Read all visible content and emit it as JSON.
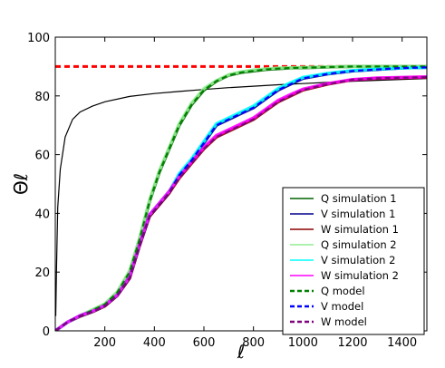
{
  "chart_data": {
    "type": "line",
    "title": "",
    "xlabel": "ℓ",
    "ylabel": "Θℓ",
    "xlim": [
      0,
      1500
    ],
    "ylim": [
      0,
      100
    ],
    "x_ticks": [
      200,
      400,
      600,
      800,
      1000,
      1200,
      1400
    ],
    "y_ticks": [
      0,
      20,
      40,
      60,
      80,
      100
    ],
    "grid": false,
    "legend_position": "bottom-right",
    "reference_lines": [
      {
        "kind": "horizontal",
        "y": 90,
        "color": "#ff0000",
        "style": "dashed"
      }
    ],
    "unlabeled_curve": {
      "color": "#000000",
      "x": [
        2,
        5,
        10,
        20,
        40,
        70,
        100,
        150,
        200,
        300,
        400,
        500,
        600,
        700,
        800,
        900,
        1000,
        1100,
        1200,
        1300,
        1400,
        1500
      ],
      "y": [
        5,
        22,
        42,
        55,
        66,
        72,
        74.5,
        76.5,
        78,
        79.8,
        80.8,
        81.5,
        82.2,
        82.8,
        83.3,
        83.8,
        84.2,
        84.6,
        85,
        85.3,
        85.6,
        85.9
      ]
    },
    "series": [
      {
        "name": "Q simulation 1",
        "color": "#006400",
        "style": "solid",
        "x": [
          0,
          50,
          100,
          150,
          200,
          250,
          300,
          340,
          380,
          420,
          460,
          500,
          550,
          600,
          650,
          700,
          750,
          800,
          850,
          900,
          950,
          1000,
          1100,
          1200,
          1300,
          1400,
          1500
        ],
        "y": [
          0,
          3,
          5,
          7,
          9,
          13,
          20,
          31,
          44,
          54,
          62,
          70,
          77,
          82,
          85,
          87,
          88,
          88.5,
          89,
          89.3,
          89.5,
          89.6,
          89.8,
          90,
          90,
          90,
          90
        ]
      },
      {
        "name": "V simulation 1",
        "color": "#00008b",
        "style": "solid",
        "x": [
          0,
          50,
          100,
          150,
          200,
          250,
          300,
          340,
          380,
          420,
          460,
          500,
          550,
          600,
          650,
          700,
          750,
          800,
          850,
          900,
          950,
          1000,
          1100,
          1200,
          1300,
          1400,
          1500
        ],
        "y": [
          0,
          3,
          5,
          6.5,
          8.5,
          12,
          18,
          29,
          39,
          43,
          47,
          53,
          58,
          64,
          70,
          72,
          74,
          76,
          79,
          82,
          84,
          86,
          87.5,
          88.5,
          89,
          89.5,
          89.7
        ]
      },
      {
        "name": "W simulation 1",
        "color": "#8b0000",
        "style": "solid",
        "x": [
          0,
          50,
          100,
          150,
          200,
          250,
          300,
          340,
          380,
          420,
          460,
          500,
          550,
          600,
          650,
          700,
          750,
          800,
          850,
          900,
          950,
          1000,
          1100,
          1200,
          1300,
          1400,
          1500
        ],
        "y": [
          0,
          3,
          5,
          6.5,
          8.5,
          12,
          18,
          29,
          39,
          43,
          47,
          52,
          57,
          62,
          66,
          68,
          70,
          72,
          75,
          78,
          80,
          82,
          84,
          85.5,
          86,
          86.2,
          86.4
        ]
      },
      {
        "name": "Q simulation 2",
        "color": "#90ee90",
        "style": "solid",
        "x": [
          0,
          50,
          100,
          150,
          200,
          250,
          300,
          340,
          380,
          420,
          460,
          500,
          550,
          600,
          650,
          700,
          750,
          800,
          850,
          900,
          950,
          1000,
          1100,
          1200,
          1300,
          1400,
          1500
        ],
        "y": [
          0,
          3,
          5.2,
          7.2,
          9.2,
          13.2,
          20.5,
          31.5,
          44.5,
          54.5,
          62.5,
          70.5,
          77.5,
          82.5,
          85.2,
          87.2,
          88.2,
          88.8,
          89.2,
          89.5,
          89.6,
          89.7,
          89.9,
          90,
          90,
          90,
          90
        ]
      },
      {
        "name": "V simulation 2",
        "color": "#00ffff",
        "style": "solid",
        "x": [
          0,
          50,
          100,
          150,
          200,
          250,
          300,
          340,
          380,
          420,
          460,
          500,
          550,
          600,
          650,
          700,
          750,
          800,
          850,
          900,
          950,
          1000,
          1100,
          1200,
          1300,
          1400,
          1500
        ],
        "y": [
          0,
          3,
          5.2,
          6.7,
          8.7,
          12.2,
          18.5,
          29.5,
          39.5,
          43.5,
          47.5,
          53.5,
          58.5,
          64.5,
          70.5,
          72.5,
          74.5,
          76.5,
          79.5,
          82.5,
          84.5,
          86.3,
          87.7,
          88.6,
          89.1,
          89.5,
          89.7
        ]
      },
      {
        "name": "W simulation 2",
        "color": "#ff00ff",
        "style": "solid",
        "x": [
          0,
          50,
          100,
          150,
          200,
          250,
          300,
          340,
          380,
          420,
          460,
          500,
          550,
          600,
          650,
          700,
          750,
          800,
          850,
          900,
          950,
          1000,
          1100,
          1200,
          1300,
          1400,
          1500
        ],
        "y": [
          0,
          3,
          5.2,
          6.7,
          8.7,
          12.2,
          18.5,
          29.5,
          39.5,
          43.5,
          47.5,
          52.5,
          57.5,
          62.5,
          66.5,
          68.5,
          70.5,
          72.5,
          75.5,
          78.5,
          80.5,
          82.3,
          84.2,
          85.6,
          86.1,
          86.3,
          86.5
        ]
      },
      {
        "name": "Q model",
        "color": "#008000",
        "style": "dashed",
        "x": [
          0,
          50,
          100,
          150,
          200,
          250,
          300,
          340,
          380,
          420,
          460,
          500,
          550,
          600,
          650,
          700,
          750,
          800,
          850,
          900,
          950,
          1000,
          1100,
          1200,
          1300,
          1400,
          1500
        ],
        "y": [
          0,
          3,
          5,
          7,
          9,
          13,
          20,
          31,
          44,
          54,
          62,
          70,
          77,
          82,
          85,
          87,
          88,
          88.5,
          89,
          89.3,
          89.5,
          89.6,
          89.8,
          90,
          90,
          90,
          90
        ]
      },
      {
        "name": "V model",
        "color": "#0000ff",
        "style": "dashed",
        "x": [
          0,
          50,
          100,
          150,
          200,
          250,
          300,
          340,
          380,
          420,
          460,
          500,
          550,
          600,
          650,
          700,
          750,
          800,
          850,
          900,
          950,
          1000,
          1100,
          1200,
          1300,
          1400,
          1500
        ],
        "y": [
          0,
          3,
          5,
          6.5,
          8.5,
          12,
          18,
          29,
          39,
          43,
          47,
          53,
          58,
          64,
          70,
          72,
          74,
          76,
          79,
          82,
          84,
          86,
          87.5,
          88.5,
          89,
          89.5,
          89.7
        ]
      },
      {
        "name": "W model",
        "color": "#800080",
        "style": "dashed",
        "x": [
          0,
          50,
          100,
          150,
          200,
          250,
          300,
          340,
          380,
          420,
          460,
          500,
          550,
          600,
          650,
          700,
          750,
          800,
          850,
          900,
          950,
          1000,
          1100,
          1200,
          1300,
          1400,
          1500
        ],
        "y": [
          0,
          3,
          5,
          6.5,
          8.5,
          12,
          18,
          29,
          39,
          43,
          47,
          52,
          57,
          62,
          66,
          68,
          70,
          72,
          75,
          78,
          80,
          82,
          84,
          85.5,
          86,
          86.2,
          86.4
        ]
      }
    ]
  }
}
